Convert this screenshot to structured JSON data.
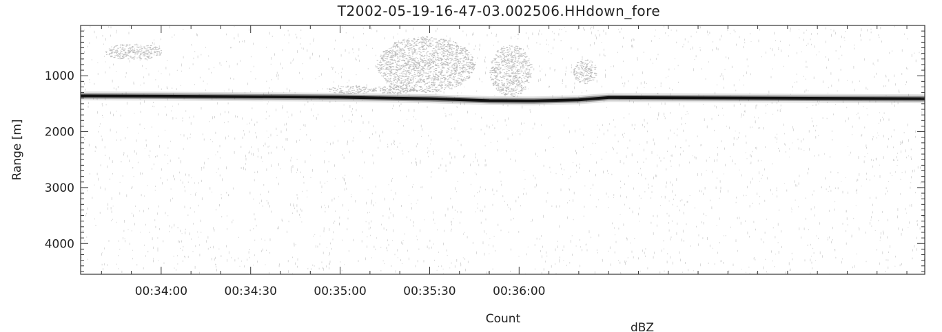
{
  "chart_data": {
    "type": "heatmap",
    "title": "T2002-05-19-16-47-03.002506.HHdown_fore",
    "ylabel": "Range [m]",
    "xlabel": "Count",
    "colorbar_label": "dBZ",
    "y_axis": {
      "inverted": true,
      "range": [
        100,
        4550
      ],
      "major_ticks": [
        1000,
        2000,
        3000,
        4000
      ],
      "tick_labels": [
        "1000",
        "2000",
        "3000",
        "4000"
      ],
      "minor_step": 100
    },
    "x_axis": {
      "range_seconds": [
        2013,
        2296
      ],
      "major_ticks": [
        2040,
        2070,
        2100,
        2130,
        2160
      ],
      "tick_labels": [
        "00:34:00",
        "00:34:30",
        "00:35:00",
        "00:35:30",
        "00:36:00"
      ],
      "minor_step": 10
    },
    "surface_echo": {
      "description_units": "range m vs time s",
      "points": [
        [
          2013,
          1360
        ],
        [
          2040,
          1365
        ],
        [
          2070,
          1375
        ],
        [
          2100,
          1385
        ],
        [
          2130,
          1410
        ],
        [
          2150,
          1445
        ],
        [
          2165,
          1450
        ],
        [
          2180,
          1430
        ],
        [
          2190,
          1390
        ],
        [
          2296,
          1410
        ]
      ]
    },
    "clutter_patches": [
      {
        "x": [
          2021,
          2040
        ],
        "y": [
          430,
          720
        ]
      },
      {
        "x": [
          2095,
          2112
        ],
        "y": [
          1180,
          1320
        ]
      },
      {
        "x": [
          2110,
          2125
        ],
        "y": [
          1180,
          1330
        ]
      },
      {
        "x": [
          2112,
          2145
        ],
        "y": [
          300,
          1300
        ]
      },
      {
        "x": [
          2150,
          2164
        ],
        "y": [
          450,
          1380
        ]
      },
      {
        "x": [
          2178,
          2186
        ],
        "y": [
          700,
          1150
        ]
      }
    ],
    "colors": {
      "strong_echo": "#111111",
      "clutter": "#a8a8a8",
      "noise": "#9a9a9a",
      "background": "#ffffff"
    }
  }
}
